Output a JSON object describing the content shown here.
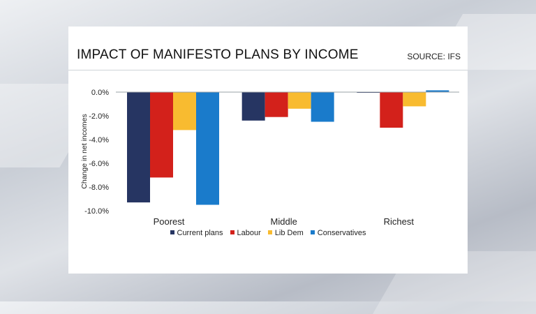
{
  "page": {
    "title": "IMPACT OF MANIFESTO PLANS BY INCOME",
    "source": "SOURCE: IFS"
  },
  "chart_data": {
    "type": "bar",
    "title": "IMPACT OF MANIFESTO PLANS BY INCOME",
    "ylabel": "Change in net incomes",
    "xlabel": "",
    "categories": [
      "Poorest",
      "Middle",
      "Richest"
    ],
    "ylim": [
      -10,
      0
    ],
    "yticks": [
      {
        "value": 0,
        "label": "0.0%"
      },
      {
        "value": -2,
        "label": "-2.0%"
      },
      {
        "value": -4,
        "label": "-4.0%"
      },
      {
        "value": -6,
        "label": "-6.0%"
      },
      {
        "value": -8,
        "label": "-8.0%"
      },
      {
        "value": -10,
        "label": "-10.0%"
      }
    ],
    "grid": false,
    "legend_position": "bottom",
    "series": [
      {
        "name": "Current plans",
        "color": "#263562",
        "values": [
          -9.3,
          -2.4,
          -0.05
        ]
      },
      {
        "name": "Labour",
        "color": "#d3211b",
        "values": [
          -7.2,
          -2.1,
          -3.0
        ]
      },
      {
        "name": "Lib Dem",
        "color": "#f8bb30",
        "values": [
          -3.2,
          -1.4,
          -1.2
        ]
      },
      {
        "name": "Conservatives",
        "color": "#1a7bcb",
        "values": [
          -9.5,
          -2.5,
          0.15
        ]
      }
    ]
  }
}
